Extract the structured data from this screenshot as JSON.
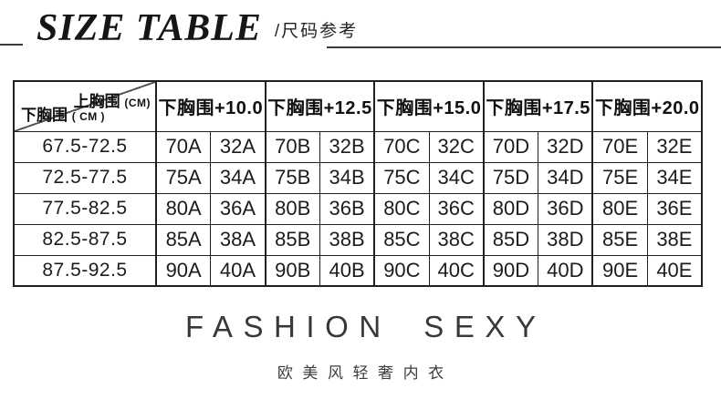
{
  "header": {
    "title": "SIZE TABLE",
    "subtitle": "/尺码参考"
  },
  "table": {
    "corner": {
      "top_label": "上胸围",
      "top_unit": "(CM)",
      "bottom_label": "下胸围",
      "bottom_unit": "( CM )"
    },
    "column_headers": [
      "下胸围+10.0",
      "下胸围+12.5",
      "下胸围+15.0",
      "下胸围+17.5",
      "下胸围+20.0"
    ],
    "rows": [
      {
        "range": "67.5-72.5",
        "cells": [
          "70A",
          "32A",
          "70B",
          "32B",
          "70C",
          "32C",
          "70D",
          "32D",
          "70E",
          "32E"
        ]
      },
      {
        "range": "72.5-77.5",
        "cells": [
          "75A",
          "34A",
          "75B",
          "34B",
          "75C",
          "34C",
          "75D",
          "34D",
          "75E",
          "34E"
        ]
      },
      {
        "range": "77.5-82.5",
        "cells": [
          "80A",
          "36A",
          "80B",
          "36B",
          "80C",
          "36C",
          "80D",
          "36D",
          "80E",
          "36E"
        ]
      },
      {
        "range": "82.5-87.5",
        "cells": [
          "85A",
          "38A",
          "85B",
          "38B",
          "85C",
          "38C",
          "85D",
          "38D",
          "85E",
          "38E"
        ]
      },
      {
        "range": "87.5-92.5",
        "cells": [
          "90A",
          "40A",
          "90B",
          "40B",
          "90C",
          "40C",
          "90D",
          "40D",
          "90E",
          "40E"
        ]
      }
    ]
  },
  "footer": {
    "brand": "FASHION SEXY",
    "tagline": "欧美风轻奢内衣"
  },
  "colors": {
    "text": "#1c1c1c",
    "border": "#1f1f1f",
    "background": "#ffffff",
    "rule": "#3a3a3a"
  }
}
